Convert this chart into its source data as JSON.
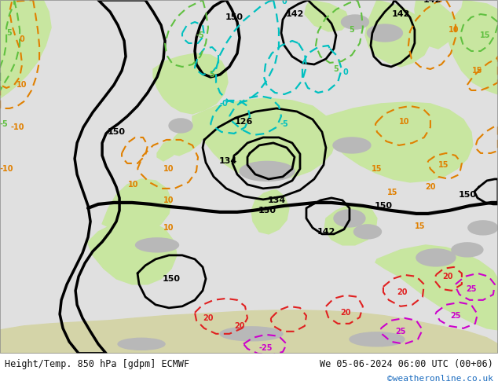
{
  "title_left": "Height/Temp. 850 hPa [gdpm] ECMWF",
  "title_right": "We 05-06-2024 06:00 UTC (00+06)",
  "credit": "©weatheronline.co.uk",
  "bg_sea": "#e8e8e8",
  "bg_land_green": "#c8e6a0",
  "bg_land_grey": "#b8b8b8",
  "footer_bg": "#ffffff",
  "credit_color": "#1a6bbf",
  "figsize": [
    6.34,
    4.9
  ],
  "dpi": 100
}
